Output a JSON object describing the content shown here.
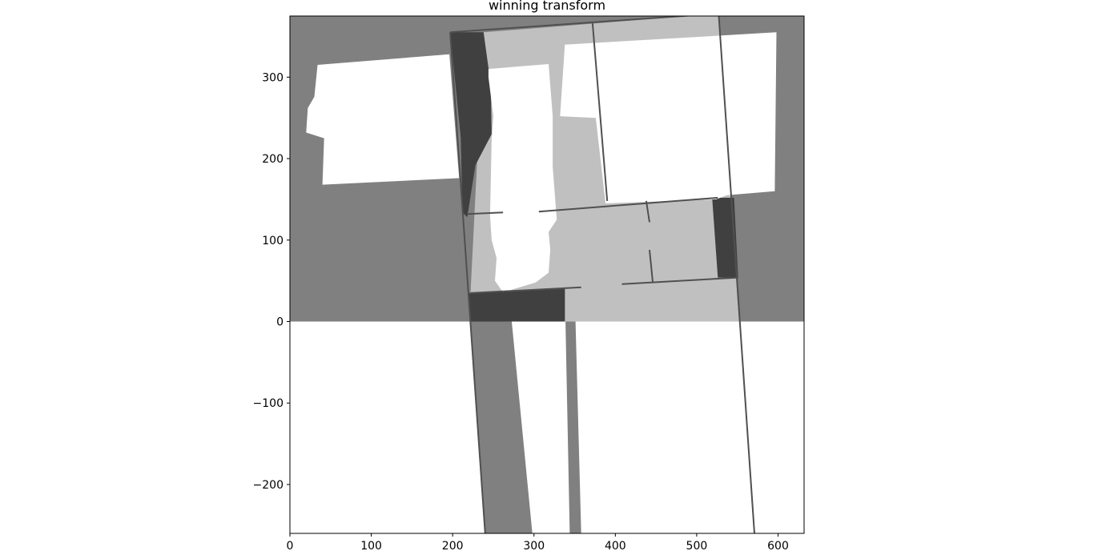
{
  "chart_data": {
    "type": "heatmap",
    "title": "winning transform",
    "xlabel": "",
    "ylabel": "",
    "xlim": [
      0,
      632
    ],
    "ylim": [
      -260,
      375
    ],
    "xticks": [
      0,
      100,
      200,
      300,
      400,
      500,
      600
    ],
    "yticks": [
      -200,
      -100,
      0,
      100,
      200,
      300
    ],
    "xtick_labels": [
      "0",
      "100",
      "200",
      "300",
      "400",
      "500",
      "600"
    ],
    "ytick_labels": [
      "−200",
      "−100",
      "0",
      "100",
      "200",
      "300"
    ],
    "grid": false,
    "colors": {
      "background": "#ffffff",
      "base_region": "#808080",
      "overlap": "#c0c0c0",
      "dark": "#404040",
      "free_space": "#ffffff",
      "outline": "#505050"
    },
    "regions": [
      {
        "kind": "base",
        "tone": "base_region",
        "points": [
          [
            0,
            375
          ],
          [
            632,
            375
          ],
          [
            632,
            0
          ],
          [
            0,
            0
          ]
        ]
      },
      {
        "kind": "transformed_strip",
        "tone": "base_region",
        "points": [
          [
            197,
            355
          ],
          [
            238,
            355
          ],
          [
            298,
            -260
          ],
          [
            240,
            -260
          ],
          [
            220,
            35
          ]
        ]
      },
      {
        "kind": "transformed_strip",
        "tone": "base_region",
        "points": [
          [
            338,
            38
          ],
          [
            344,
            -260
          ],
          [
            358,
            -260
          ],
          [
            350,
            40
          ]
        ]
      },
      {
        "kind": "transformed_map",
        "tone": "overlap",
        "points": [
          [
            238,
            355
          ],
          [
            527,
            378
          ],
          [
            552,
            0
          ],
          [
            338,
            0
          ],
          [
            338,
            40
          ],
          [
            222,
            35
          ]
        ]
      },
      {
        "kind": "dark_band",
        "tone": "dark",
        "points": [
          [
            197,
            355
          ],
          [
            238,
            355
          ],
          [
            247,
            290
          ],
          [
            248,
            230
          ],
          [
            228,
            192
          ],
          [
            218,
            128
          ],
          [
            212,
            134
          ],
          [
            210,
            226
          ]
        ]
      },
      {
        "kind": "dark_band",
        "tone": "dark",
        "points": [
          [
            220,
            35
          ],
          [
            222,
            35
          ],
          [
            338,
            40
          ],
          [
            338,
            0
          ],
          [
            222,
            0
          ]
        ]
      },
      {
        "kind": "dark_band",
        "tone": "dark",
        "points": [
          [
            519,
            152
          ],
          [
            546,
            152
          ],
          [
            551,
            54
          ],
          [
            526,
            54
          ]
        ]
      },
      {
        "kind": "room",
        "tone": "free_space",
        "points": [
          [
            34,
            315
          ],
          [
            196,
            328
          ],
          [
            208,
            176
          ],
          [
            40,
            168
          ],
          [
            42,
            225
          ],
          [
            20,
            232
          ],
          [
            22,
            262
          ],
          [
            30,
            276
          ]
        ]
      },
      {
        "kind": "room",
        "tone": "free_space",
        "points": [
          [
            340,
            340
          ],
          [
            598,
            355
          ],
          [
            596,
            160
          ],
          [
            537,
            155
          ],
          [
            524,
            150
          ],
          [
            388,
            145
          ],
          [
            376,
            250
          ],
          [
            332,
            252
          ],
          [
            338,
            340
          ]
        ]
      },
      {
        "kind": "room",
        "tone": "free_space",
        "points": [
          [
            244,
            310
          ],
          [
            318,
            316
          ],
          [
            323,
            252
          ],
          [
            323,
            190
          ],
          [
            328,
            125
          ],
          [
            318,
            110
          ],
          [
            320,
            88
          ],
          [
            318,
            60
          ],
          [
            302,
            48
          ],
          [
            262,
            36
          ],
          [
            252,
            50
          ],
          [
            254,
            78
          ],
          [
            248,
            100
          ],
          [
            246,
            130
          ],
          [
            248,
            224
          ],
          [
            250,
            252
          ],
          [
            244,
            300
          ]
        ]
      }
    ],
    "walls": [
      {
        "points": [
          [
            197,
            355
          ],
          [
            527,
            378
          ]
        ]
      },
      {
        "points": [
          [
            527,
            378
          ],
          [
            571,
            -260
          ]
        ]
      },
      {
        "points": [
          [
            197,
            355
          ],
          [
            240,
            -260
          ]
        ]
      },
      {
        "points": [
          [
            372,
            366
          ],
          [
            390,
            148
          ]
        ]
      },
      {
        "points": [
          [
            306,
            135
          ],
          [
            526,
            152
          ]
        ]
      },
      {
        "points": [
          [
            218,
            132
          ],
          [
            262,
            134
          ]
        ]
      },
      {
        "points": [
          [
            222,
            35
          ],
          [
            358,
            42
          ]
        ]
      },
      {
        "points": [
          [
            408,
            46
          ],
          [
            551,
            54
          ]
        ]
      },
      {
        "points": [
          [
            438,
            148
          ],
          [
            442,
            122
          ]
        ]
      },
      {
        "points": [
          [
            442,
            88
          ],
          [
            446,
            48
          ]
        ]
      }
    ]
  }
}
